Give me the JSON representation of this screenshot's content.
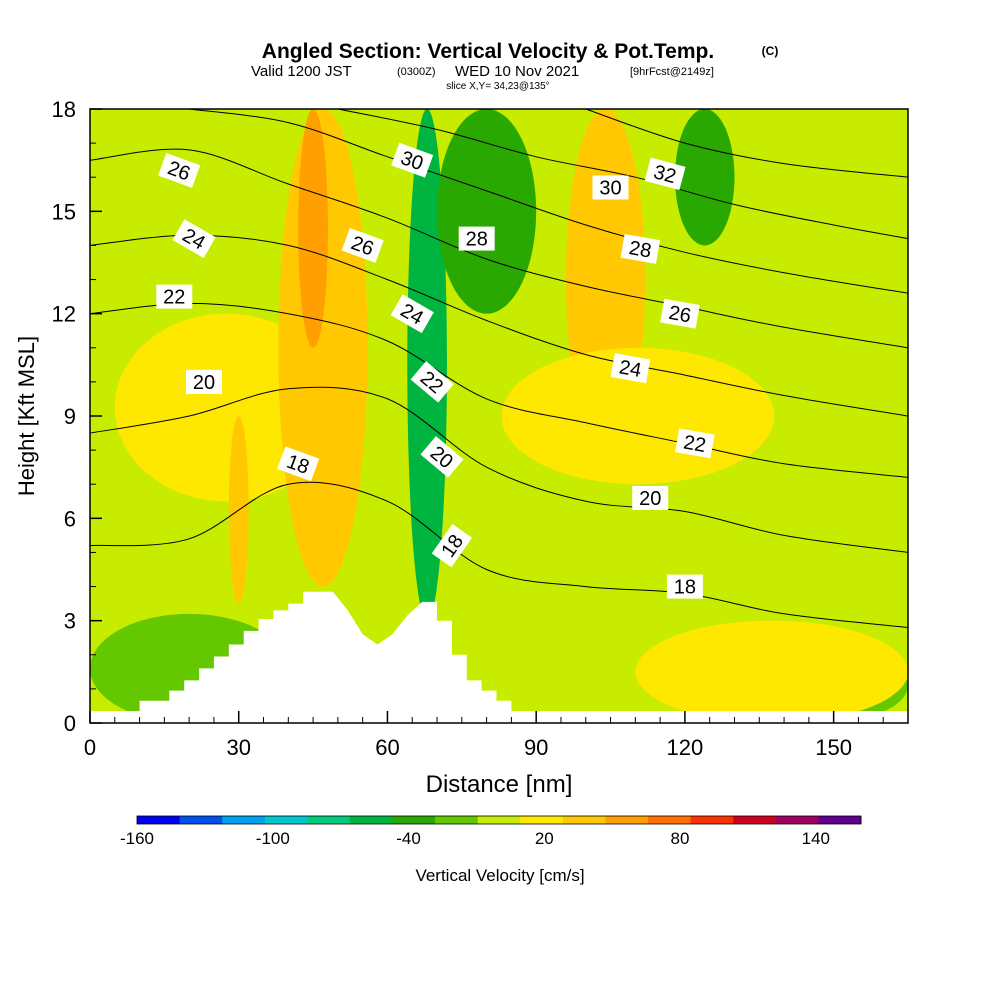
{
  "header": {
    "title": "Angled Section: Vertical Velocity & Pot.Temp.",
    "title_unit": "(C)",
    "valid_prefix": "Valid 1200 JST",
    "valid_utc": "(0300Z)",
    "valid_date": "WED 10 Nov 2021",
    "fcst": "[9hrFcst@2149z]",
    "slice": "slice X,Y= 34,23@135°"
  },
  "chart_data": {
    "type": "heatmap",
    "title": "Angled Section: Vertical Velocity & Pot.Temp. (C)",
    "xlabel": "Distance [nm]",
    "ylabel": "Height [Kft MSL]",
    "xlim": [
      0,
      165
    ],
    "ylim": [
      0,
      18
    ],
    "xticks": [
      "0",
      "30",
      "60",
      "90",
      "120",
      "150"
    ],
    "yticks": [
      "0",
      "3",
      "6",
      "9",
      "12",
      "15",
      "18"
    ],
    "colorbar": {
      "label": "Vertical Velocity [cm/s]",
      "ticks": [
        "-160",
        "-100",
        "-40",
        "20",
        "80",
        "140"
      ],
      "levels": [
        -160,
        -140,
        -120,
        -100,
        -80,
        -60,
        -40,
        -20,
        0,
        20,
        40,
        60,
        80,
        100,
        120,
        140,
        160
      ],
      "colors": [
        "#0000f0",
        "#0050f0",
        "#00a0f0",
        "#00c8d0",
        "#00cc80",
        "#00b440",
        "#28a800",
        "#64c800",
        "#c8ec00",
        "#ffe800",
        "#ffc800",
        "#ffa000",
        "#ff7000",
        "#ff3000",
        "#d00020",
        "#a00060",
        "#600090"
      ]
    },
    "background_level_color": "#c8ec00",
    "vertical_velocity_regions": [
      {
        "level": "-10",
        "x": [
          0,
          40
        ],
        "y": [
          0,
          3.2
        ]
      },
      {
        "level": "-10",
        "x": [
          130,
          165
        ],
        "y": [
          0,
          2.2
        ]
      },
      {
        "level": "30",
        "x": [
          5,
          50
        ],
        "y": [
          6.5,
          12
        ]
      },
      {
        "level": "50",
        "x": [
          38,
          56
        ],
        "y": [
          4,
          18
        ]
      },
      {
        "level": "70",
        "x": [
          42,
          48
        ],
        "y": [
          11,
          18
        ]
      },
      {
        "level": "50",
        "x": [
          28,
          32
        ],
        "y": [
          3.5,
          9
        ]
      },
      {
        "level": "-60",
        "x": [
          64,
          72
        ],
        "y": [
          3,
          18
        ]
      },
      {
        "level": "-40",
        "x": [
          70,
          90
        ],
        "y": [
          12,
          18
        ]
      },
      {
        "level": "-40",
        "x": [
          118,
          130
        ],
        "y": [
          14,
          18
        ]
      },
      {
        "level": "50",
        "x": [
          96,
          112
        ],
        "y": [
          8,
          18
        ]
      },
      {
        "level": "30",
        "x": [
          83,
          138
        ],
        "y": [
          7,
          11
        ]
      },
      {
        "level": "30",
        "x": [
          110,
          165
        ],
        "y": [
          0,
          3
        ]
      }
    ],
    "pot_temp_contours": [
      {
        "value": 18,
        "label": "18",
        "x": [
          0,
          20,
          40,
          60,
          80,
          100,
          120,
          140,
          165
        ],
        "y": [
          5.2,
          5.4,
          7.0,
          6.5,
          4.5,
          4.0,
          3.8,
          3.2,
          2.8
        ]
      },
      {
        "value": 20,
        "label": "20",
        "x": [
          0,
          20,
          40,
          60,
          80,
          100,
          120,
          140,
          165
        ],
        "y": [
          8.5,
          9.0,
          9.8,
          9.5,
          7.5,
          6.5,
          6.2,
          5.5,
          5.0
        ]
      },
      {
        "value": 22,
        "label": "22",
        "x": [
          0,
          20,
          40,
          60,
          80,
          100,
          120,
          140,
          165
        ],
        "y": [
          12.0,
          12.3,
          12.0,
          11.2,
          9.5,
          8.8,
          8.2,
          7.6,
          7.2
        ]
      },
      {
        "value": 24,
        "label": "24",
        "x": [
          0,
          20,
          40,
          60,
          80,
          100,
          120,
          140,
          165
        ],
        "y": [
          14.0,
          14.3,
          14.0,
          13.0,
          11.8,
          10.8,
          10.2,
          9.6,
          9.0
        ]
      },
      {
        "value": 26,
        "label": "26",
        "x": [
          0,
          20,
          40,
          60,
          80,
          100,
          120,
          140,
          165
        ],
        "y": [
          16.5,
          16.8,
          15.8,
          14.8,
          13.6,
          12.8,
          12.2,
          11.6,
          11.0
        ]
      },
      {
        "value": 28,
        "label": "28",
        "x": [
          20,
          40,
          60,
          80,
          100,
          120,
          140,
          165
        ],
        "y": [
          18.0,
          17.6,
          16.6,
          15.6,
          14.6,
          13.8,
          13.2,
          12.6
        ]
      },
      {
        "value": 30,
        "label": "30",
        "x": [
          50,
          70,
          90,
          110,
          130,
          150,
          165
        ],
        "y": [
          18.0,
          17.4,
          16.6,
          16.0,
          15.2,
          14.6,
          14.2
        ]
      },
      {
        "value": 32,
        "label": "32",
        "x": [
          100,
          120,
          140,
          165
        ],
        "y": [
          18.0,
          17.0,
          16.4,
          16.0
        ]
      }
    ],
    "contour_labels": [
      {
        "text": "26",
        "x": 18,
        "y": 16.2,
        "rot": 20
      },
      {
        "text": "24",
        "x": 21,
        "y": 14.2,
        "rot": 30
      },
      {
        "text": "22",
        "x": 17,
        "y": 12.5,
        "rot": 0
      },
      {
        "text": "20",
        "x": 23,
        "y": 10.0,
        "rot": 0
      },
      {
        "text": "18",
        "x": 42,
        "y": 7.6,
        "rot": 20
      },
      {
        "text": "26",
        "x": 55,
        "y": 14.0,
        "rot": 20
      },
      {
        "text": "30",
        "x": 65,
        "y": 16.5,
        "rot": 20
      },
      {
        "text": "28",
        "x": 78,
        "y": 14.2,
        "rot": 0
      },
      {
        "text": "24",
        "x": 65,
        "y": 12.0,
        "rot": 30
      },
      {
        "text": "22",
        "x": 69,
        "y": 10.0,
        "rot": 40
      },
      {
        "text": "20",
        "x": 71,
        "y": 7.8,
        "rot": 40
      },
      {
        "text": "18",
        "x": 73,
        "y": 5.2,
        "rot": -55
      },
      {
        "text": "30",
        "x": 105,
        "y": 15.7,
        "rot": 0
      },
      {
        "text": "32",
        "x": 116,
        "y": 16.1,
        "rot": 15
      },
      {
        "text": "28",
        "x": 111,
        "y": 13.9,
        "rot": 10
      },
      {
        "text": "26",
        "x": 119,
        "y": 12.0,
        "rot": 10
      },
      {
        "text": "24",
        "x": 109,
        "y": 10.4,
        "rot": 10
      },
      {
        "text": "22",
        "x": 122,
        "y": 8.2,
        "rot": 10
      },
      {
        "text": "20",
        "x": 113,
        "y": 6.6,
        "rot": 0
      },
      {
        "text": "18",
        "x": 120,
        "y": 4.0,
        "rot": 0
      }
    ],
    "terrain": {
      "x": [
        0,
        10,
        10,
        16,
        16,
        19,
        19,
        22,
        22,
        25,
        25,
        28,
        28,
        31,
        31,
        34,
        34,
        37,
        37,
        40,
        40,
        43,
        43,
        46,
        46,
        49,
        49,
        52,
        52,
        55,
        55,
        58,
        58,
        61,
        61,
        64,
        64,
        67,
        67,
        70,
        70,
        73,
        73,
        76,
        76,
        79,
        79,
        82,
        82,
        85,
        85,
        90,
        90,
        165
      ],
      "y": [
        0.35,
        0.35,
        0.65,
        0.65,
        0.95,
        0.95,
        1.25,
        1.25,
        1.6,
        1.6,
        1.95,
        1.95,
        2.3,
        2.3,
        2.7,
        2.7,
        3.05,
        3.05,
        3.3,
        3.3,
        3.5,
        3.5,
        3.85,
        3.85,
        3.85,
        3.85,
        3.85,
        3.3,
        3.3,
        2.6,
        2.6,
        2.3,
        2.3,
        2.6,
        2.6,
        3.15,
        3.15,
        3.55,
        3.55,
        3.55,
        3.0,
        3.0,
        2.0,
        2.0,
        1.25,
        1.25,
        0.95,
        0.95,
        0.65,
        0.65,
        0.35,
        0.35,
        0.35,
        0.35
      ]
    }
  }
}
